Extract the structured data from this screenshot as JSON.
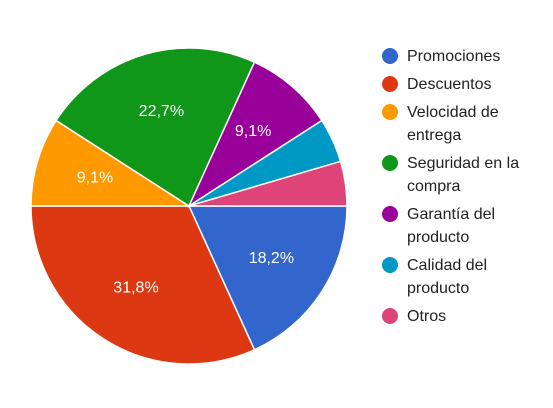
{
  "chart_data": {
    "type": "pie",
    "categories": [
      "Promociones",
      "Descuentos",
      "Velocidad de entrega",
      "Seguridad en la compra",
      "Garantía del producto",
      "Calidad del producto",
      "Otros"
    ],
    "values": [
      18.2,
      31.8,
      9.1,
      22.7,
      9.1,
      4.55,
      4.55
    ],
    "value_labels": [
      "18,2%",
      "31,8%",
      "9,1%",
      "22,7%",
      "9,1%",
      null,
      null
    ],
    "colors": [
      "#3366cc",
      "#dc3912",
      "#ff9900",
      "#109618",
      "#990099",
      "#0099c6",
      "#dd4477"
    ],
    "legend": "right"
  }
}
